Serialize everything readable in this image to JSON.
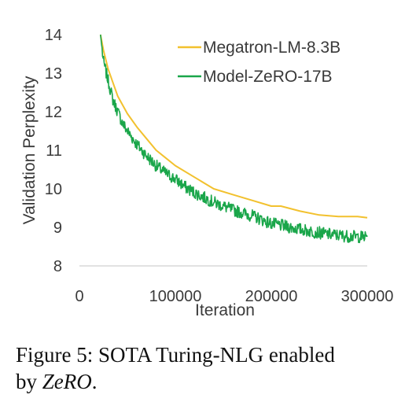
{
  "chart_data": {
    "type": "line",
    "xlabel": "Iteration",
    "ylabel": "Validation Perplexity",
    "xlim": [
      0,
      300000
    ],
    "ylim": [
      8,
      14
    ],
    "xticks": [
      0,
      100000,
      200000,
      300000
    ],
    "xtick_labels": [
      "0",
      "100000",
      "200000",
      "300000"
    ],
    "yticks": [
      8,
      9,
      10,
      11,
      12,
      13,
      14
    ],
    "ytick_labels": [
      "8",
      "9",
      "10",
      "11",
      "12",
      "13",
      "14"
    ],
    "grid": false,
    "legend_position": "top-right",
    "series": [
      {
        "name": "Megatron-LM-8.3B",
        "color": "#f2c12e",
        "noisy": false,
        "x": [
          22000,
          25000,
          30000,
          40000,
          50000,
          60000,
          70000,
          80000,
          90000,
          100000,
          120000,
          140000,
          160000,
          180000,
          200000,
          210000,
          230000,
          250000,
          270000,
          290000,
          300000
        ],
        "y": [
          14.0,
          13.6,
          13.1,
          12.4,
          11.95,
          11.6,
          11.3,
          11.0,
          10.8,
          10.6,
          10.3,
          10.0,
          9.85,
          9.7,
          9.55,
          9.55,
          9.42,
          9.32,
          9.28,
          9.28,
          9.25
        ]
      },
      {
        "name": "Model-ZeRO-17B",
        "color": "#1aa64a",
        "noisy": true,
        "x": [
          22000,
          25000,
          30000,
          35000,
          40000,
          45000,
          50000,
          60000,
          70000,
          80000,
          90000,
          100000,
          110000,
          120000,
          140000,
          160000,
          180000,
          200000,
          220000,
          240000,
          260000,
          280000,
          300000
        ],
        "y": [
          14.0,
          13.3,
          12.8,
          12.3,
          12.0,
          11.7,
          11.5,
          11.15,
          10.85,
          10.6,
          10.4,
          10.25,
          10.05,
          9.9,
          9.65,
          9.45,
          9.3,
          9.1,
          9.0,
          8.9,
          8.82,
          8.77,
          8.75
        ]
      }
    ]
  },
  "caption": {
    "line1": "Figure 5: SOTA Turing-NLG enabled",
    "line2_prefix": "by ",
    "line2_italic": "ZeRO",
    "line2_suffix": "."
  }
}
